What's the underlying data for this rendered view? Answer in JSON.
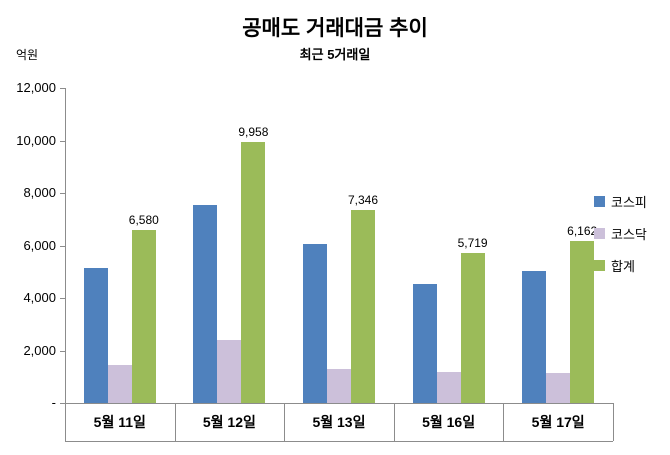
{
  "chart_data": {
    "type": "bar",
    "title": "공매도 거래대금 추이",
    "subtitle": "최근 5거래일",
    "unit_label": "억원",
    "categories": [
      "5월 11일",
      "5월 12일",
      "5월 13일",
      "5월 16일",
      "5월 17일"
    ],
    "series": [
      {
        "name": "코스피",
        "color": "#4f81bd",
        "values": [
          5130,
          7560,
          6050,
          4520,
          5010
        ],
        "show_value_labels": false
      },
      {
        "name": "코스닥",
        "color": "#ccc0da",
        "values": [
          1450,
          2400,
          1300,
          1200,
          1150
        ],
        "show_value_labels": false
      },
      {
        "name": "합계",
        "color": "#9bbb59",
        "values": [
          6580,
          9958,
          7346,
          5719,
          6162
        ],
        "show_value_labels": true,
        "value_labels": [
          "6,580",
          "9,958",
          "7,346",
          "5,719",
          "6,162"
        ]
      }
    ],
    "ylim": [
      0,
      12000
    ],
    "yticks": [
      {
        "value": 12000,
        "label": "12,000"
      },
      {
        "value": 10000,
        "label": "10,000"
      },
      {
        "value": 8000,
        "label": "8,000"
      },
      {
        "value": 6000,
        "label": "6,000"
      },
      {
        "value": 4000,
        "label": "4,000"
      },
      {
        "value": 2000,
        "label": "2,000"
      },
      {
        "value": 0,
        "label": "-"
      }
    ],
    "grid": false,
    "legend_position": "right"
  }
}
